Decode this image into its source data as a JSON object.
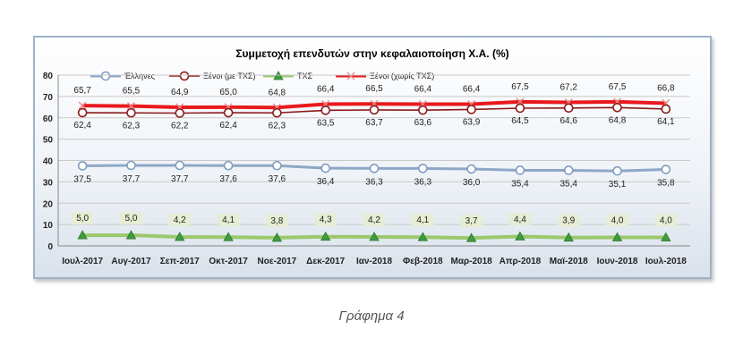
{
  "caption": "Γράφημα 4",
  "chart_data": {
    "type": "line",
    "title": "Συμμετοχή επενδυτών στην κεφαλαιοποίηση Χ.Α. (%)",
    "categories": [
      "Ιουλ-2017",
      "Αυγ-2017",
      "Σεπ-2017",
      "Οκτ-2017",
      "Νοε-2017",
      "Δεκ-2017",
      "Ιαν-2018",
      "Φεβ-2018",
      "Μαρ-2018",
      "Απρ-2018",
      "Μαϊ-2018",
      "Ιουν-2018",
      "Ιουλ-2018"
    ],
    "ylim": [
      0,
      80
    ],
    "yticks": [
      0,
      10,
      20,
      30,
      40,
      50,
      60,
      70,
      80
    ],
    "grid": true,
    "legend_position": "top",
    "series": [
      {
        "name": "Έλληνες",
        "color": "#7f9cbf",
        "marker": "circle",
        "values": [
          37.5,
          37.7,
          37.7,
          37.6,
          37.6,
          36.4,
          36.3,
          36.3,
          36.0,
          35.4,
          35.4,
          35.1,
          35.8
        ],
        "labels": [
          "37,5",
          "37,7",
          "37,7",
          "37,6",
          "37,6",
          "36,4",
          "36,3",
          "36,3",
          "36,0",
          "35,4",
          "35,4",
          "35,1",
          "35,8"
        ]
      },
      {
        "name": "Ξένοι (με ΤΧΣ)",
        "color": "#8b1a1a",
        "marker": "circle",
        "values": [
          62.4,
          62.3,
          62.2,
          62.4,
          62.3,
          63.5,
          63.7,
          63.6,
          63.9,
          64.5,
          64.6,
          64.8,
          64.1
        ],
        "labels": [
          "62,4",
          "62,3",
          "62,2",
          "62,4",
          "62,3",
          "63,5",
          "63,7",
          "63,6",
          "63,9",
          "64,5",
          "64,6",
          "64,8",
          "64,1"
        ]
      },
      {
        "name": "ΤΧΣ",
        "color": "#3f9b3f",
        "marker": "triangle",
        "values": [
          5.0,
          5.0,
          4.2,
          4.1,
          3.8,
          4.3,
          4.2,
          4.1,
          3.7,
          4.4,
          3.9,
          4.0,
          4.0
        ],
        "labels": [
          "5,0",
          "5,0",
          "4,2",
          "4,1",
          "3,8",
          "4,3",
          "4,2",
          "4,1",
          "3,7",
          "4,4",
          "3,9",
          "4,0",
          "4,0"
        ]
      },
      {
        "name": "Ξένοι (χωρίς ΤΧΣ)",
        "color": "#e8191c",
        "marker": "x",
        "values": [
          65.7,
          65.5,
          64.9,
          65.0,
          64.8,
          66.4,
          66.5,
          66.4,
          66.4,
          67.5,
          67.2,
          67.5,
          66.8
        ],
        "labels": [
          "65,7",
          "65,5",
          "64,9",
          "65,0",
          "64,8",
          "66,4",
          "66,5",
          "66,4",
          "66,4",
          "67,5",
          "67,2",
          "67,5",
          "66,8"
        ]
      }
    ]
  }
}
